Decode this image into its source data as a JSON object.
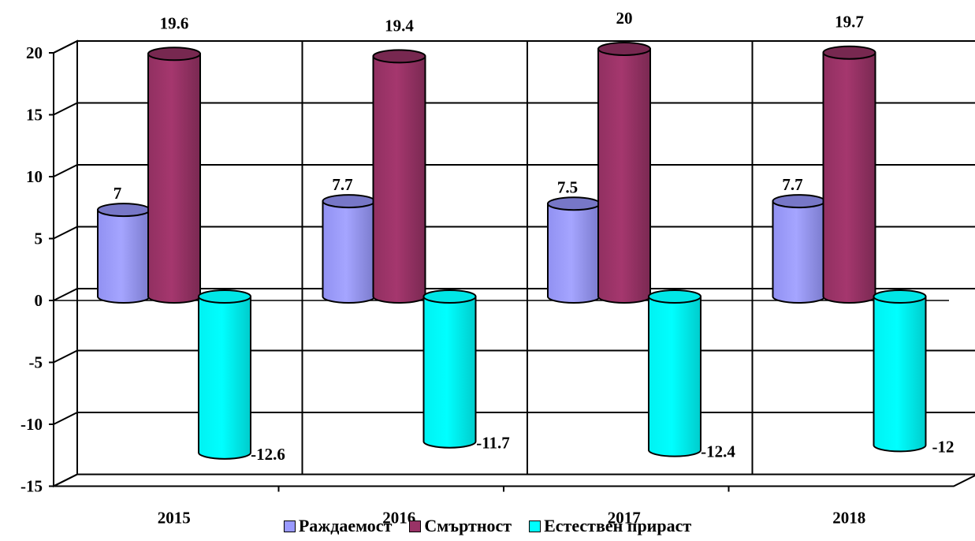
{
  "chart_data": {
    "type": "bar",
    "bar_shape": "cylinder-3d",
    "categories": [
      "2015",
      "2016",
      "2017",
      "2018"
    ],
    "series": [
      {
        "name": "Раждаемост",
        "values": [
          7,
          7.7,
          7.5,
          7.7
        ],
        "labels": [
          "7",
          "7.7",
          "7.5",
          "7.7"
        ],
        "color": "#9999ff"
      },
      {
        "name": "Смъртност",
        "values": [
          19.6,
          19.4,
          20,
          19.7
        ],
        "labels": [
          "19.6",
          "19.4",
          "20",
          "19.7"
        ],
        "color": "#993366"
      },
      {
        "name": "Естествен прираст",
        "values": [
          -12.6,
          -11.7,
          -12.4,
          -12
        ],
        "labels": [
          "-12.6",
          "-11.7",
          "-12.4",
          "-12"
        ],
        "color": "#00ffff"
      }
    ],
    "ylim": [
      -15,
      20
    ],
    "yticks": [
      "-15",
      "-10",
      "-5",
      "0",
      "5",
      "10",
      "15",
      "20"
    ],
    "grid": true,
    "legend_position": "bottom"
  }
}
